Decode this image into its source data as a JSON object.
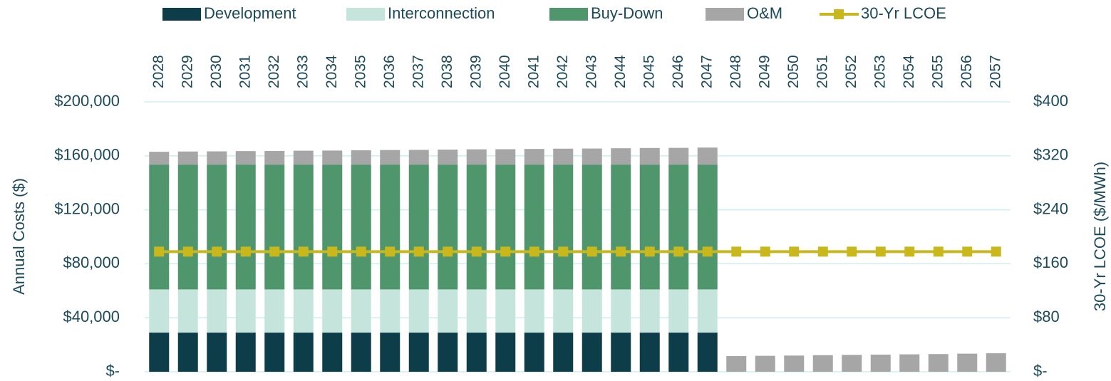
{
  "chart_data": {
    "type": "bar",
    "ylabel": "Annual Costs ($)",
    "y2label": "30-Yr LCOE ($/MWh)",
    "stacked": true,
    "categories": [
      "2028",
      "2029",
      "2030",
      "2031",
      "2032",
      "2033",
      "2034",
      "2035",
      "2036",
      "2037",
      "2038",
      "2039",
      "2040",
      "2041",
      "2042",
      "2043",
      "2044",
      "2045",
      "2046",
      "2047",
      "2048",
      "2049",
      "2050",
      "2051",
      "2052",
      "2053",
      "2054",
      "2055",
      "2056",
      "2057"
    ],
    "series": [
      {
        "name": "Development",
        "color": "#0e3d4a",
        "type": "bar",
        "values": [
          29000,
          29000,
          29000,
          29000,
          29000,
          29000,
          29000,
          29000,
          29000,
          29000,
          29000,
          29000,
          29000,
          29000,
          29000,
          29000,
          29000,
          29000,
          29000,
          29000,
          null,
          null,
          null,
          null,
          null,
          null,
          null,
          null,
          null,
          null
        ]
      },
      {
        "name": "Interconnection",
        "color": "#c5e5dc",
        "type": "bar",
        "values": [
          32000,
          32000,
          32000,
          32000,
          32000,
          32000,
          32000,
          32000,
          32000,
          32000,
          32000,
          32000,
          32000,
          32000,
          32000,
          32000,
          32000,
          32000,
          32000,
          32000,
          null,
          null,
          null,
          null,
          null,
          null,
          null,
          null,
          null,
          null
        ]
      },
      {
        "name": "Buy-Down",
        "color": "#4f966c",
        "type": "bar",
        "values": [
          92500,
          92500,
          92500,
          92500,
          92500,
          92500,
          92500,
          92500,
          92500,
          92500,
          92500,
          92500,
          92500,
          92500,
          92500,
          92500,
          92500,
          92500,
          92500,
          92500,
          null,
          null,
          null,
          null,
          null,
          null,
          null,
          null,
          null,
          null
        ]
      },
      {
        "name": "O&M",
        "color": "#a6a6a6",
        "type": "bar",
        "values": [
          9500,
          9700,
          9800,
          10000,
          10100,
          10300,
          10400,
          10600,
          10800,
          10900,
          11100,
          11300,
          11400,
          11600,
          11800,
          11900,
          12100,
          12300,
          12400,
          12600,
          11600,
          11800,
          12000,
          12300,
          12500,
          12700,
          12900,
          13100,
          13400,
          13700
        ]
      },
      {
        "name": "30-Yr LCOE",
        "color": "#c8b81e",
        "type": "line",
        "axis": "y2",
        "values": [
          178,
          178,
          178,
          178,
          178,
          178,
          178,
          178,
          178,
          178,
          178,
          178,
          178,
          178,
          178,
          178,
          178,
          178,
          178,
          178,
          178,
          178,
          178,
          178,
          178,
          178,
          178,
          178,
          178,
          178
        ]
      }
    ],
    "ylim": [
      0,
      200000
    ],
    "yticks": [
      {
        "value": 0,
        "label": "$-"
      },
      {
        "value": 40000,
        "label": "$40,000"
      },
      {
        "value": 80000,
        "label": "$80,000"
      },
      {
        "value": 120000,
        "label": "$120,000"
      },
      {
        "value": 160000,
        "label": "$160,000"
      },
      {
        "value": 200000,
        "label": "$200,000"
      }
    ],
    "y2lim": [
      0,
      400
    ],
    "y2ticks": [
      {
        "value": 0,
        "label": "$-"
      },
      {
        "value": 80,
        "label": "$80"
      },
      {
        "value": 160,
        "label": "$160"
      },
      {
        "value": 240,
        "label": "$240"
      },
      {
        "value": 320,
        "label": "$320"
      },
      {
        "value": 400,
        "label": "$400"
      }
    ],
    "grid": true,
    "legend": "top"
  }
}
